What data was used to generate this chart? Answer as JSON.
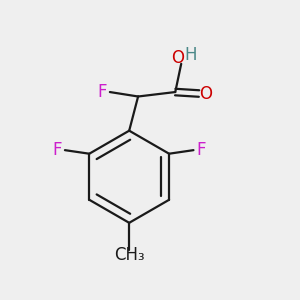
{
  "background_color": "#efefef",
  "bond_color": "#1a1a1a",
  "bond_width": 1.6,
  "atom_colors": {
    "F": "#cc1fcc",
    "O": "#cc0000",
    "H": "#4a8888",
    "C": "#1a1a1a",
    "CH3": "#1a1a1a"
  },
  "font_size": 12
}
